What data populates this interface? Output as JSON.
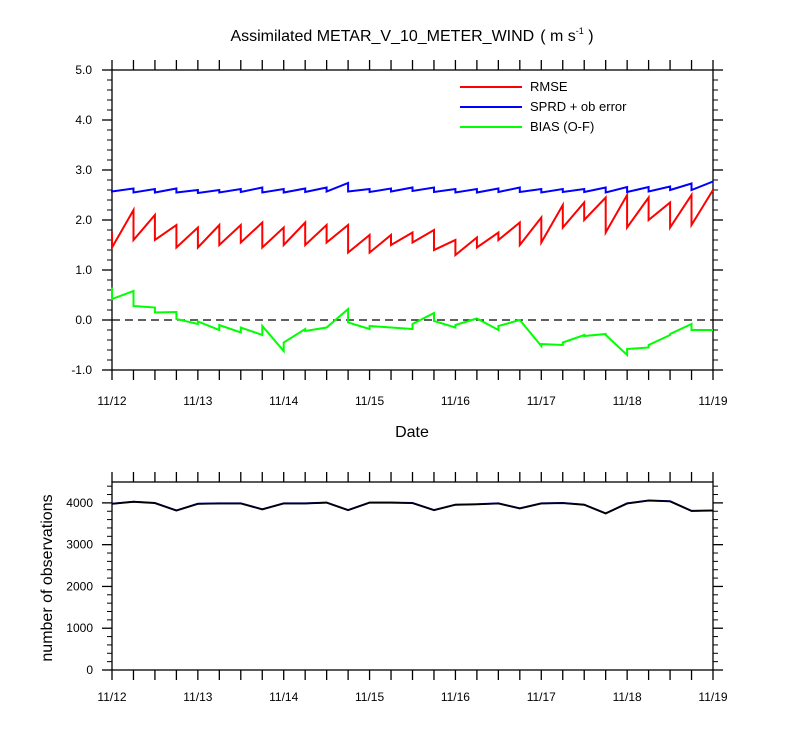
{
  "chart_data": [
    {
      "type": "line",
      "title": "Assimilated METAR_V_10_METER_WIND",
      "title_units_prefix": "( m s",
      "title_units_exp": "-1",
      "title_units_suffix": " )",
      "xlabel": "Date",
      "ylabel": "",
      "ylim": [
        -1.0,
        5.0
      ],
      "y_ticks": [
        "-1.0",
        "0.0",
        "1.0",
        "2.0",
        "3.0",
        "4.0",
        "5.0"
      ],
      "x_tick_labels": [
        "11/12",
        "11/13",
        "11/14",
        "11/15",
        "11/16",
        "11/17",
        "11/18",
        "11/19"
      ],
      "xlim_days": [
        12,
        19
      ],
      "reference_line": 0.0,
      "legend_position": "top-right",
      "series": [
        {
          "name": "RMSE",
          "color": "#ff0000",
          "x": [
            12.0,
            12.0,
            12.25,
            12.25,
            12.5,
            12.5,
            12.75,
            12.75,
            13.0,
            13.0,
            13.25,
            13.25,
            13.5,
            13.5,
            13.75,
            13.75,
            14.0,
            14.0,
            14.25,
            14.25,
            14.5,
            14.5,
            14.75,
            14.75,
            15.0,
            15.0,
            15.25,
            15.25,
            15.5,
            15.5,
            15.75,
            15.75,
            16.0,
            16.0,
            16.25,
            16.25,
            16.5,
            16.5,
            16.75,
            16.75,
            17.0,
            17.0,
            17.25,
            17.25,
            17.5,
            17.5,
            17.75,
            17.75,
            18.0,
            18.0,
            18.25,
            18.25,
            18.5,
            18.5,
            18.75,
            18.75,
            19.0
          ],
          "values": [
            1.75,
            1.45,
            2.2,
            1.6,
            2.1,
            1.6,
            1.9,
            1.45,
            1.85,
            1.45,
            1.9,
            1.5,
            1.9,
            1.55,
            1.95,
            1.45,
            1.85,
            1.5,
            1.95,
            1.5,
            1.9,
            1.55,
            1.9,
            1.35,
            1.7,
            1.35,
            1.7,
            1.5,
            1.75,
            1.55,
            1.8,
            1.4,
            1.6,
            1.3,
            1.65,
            1.45,
            1.75,
            1.6,
            1.95,
            1.5,
            2.05,
            1.55,
            2.3,
            1.85,
            2.35,
            2.0,
            2.45,
            1.75,
            2.5,
            1.85,
            2.45,
            2.0,
            2.35,
            1.85,
            2.5,
            1.9,
            2.6
          ]
        },
        {
          "name": "SPRD + ob error",
          "color": "#0000ff",
          "x": [
            12.0,
            12.0,
            12.25,
            12.25,
            12.5,
            12.5,
            12.75,
            12.75,
            13.0,
            13.0,
            13.25,
            13.25,
            13.5,
            13.5,
            13.75,
            13.75,
            14.0,
            14.0,
            14.25,
            14.25,
            14.5,
            14.5,
            14.75,
            14.75,
            15.0,
            15.0,
            15.25,
            15.25,
            15.5,
            15.5,
            15.75,
            15.75,
            16.0,
            16.0,
            16.25,
            16.25,
            16.5,
            16.5,
            16.75,
            16.75,
            17.0,
            17.0,
            17.25,
            17.25,
            17.5,
            17.5,
            17.75,
            17.75,
            18.0,
            18.0,
            18.25,
            18.25,
            18.5,
            18.5,
            18.75,
            18.75,
            19.0
          ],
          "values": [
            2.6,
            2.57,
            2.63,
            2.55,
            2.62,
            2.55,
            2.63,
            2.55,
            2.6,
            2.54,
            2.6,
            2.55,
            2.62,
            2.56,
            2.65,
            2.55,
            2.62,
            2.55,
            2.63,
            2.56,
            2.65,
            2.57,
            2.74,
            2.57,
            2.62,
            2.56,
            2.63,
            2.57,
            2.65,
            2.58,
            2.65,
            2.56,
            2.62,
            2.55,
            2.62,
            2.55,
            2.63,
            2.56,
            2.65,
            2.56,
            2.62,
            2.55,
            2.62,
            2.56,
            2.62,
            2.56,
            2.65,
            2.55,
            2.66,
            2.56,
            2.66,
            2.57,
            2.67,
            2.6,
            2.73,
            2.6,
            2.77
          ]
        },
        {
          "name": "BIAS (O-F)",
          "color": "#00ff00",
          "x": [
            12.0,
            12.0,
            12.25,
            12.25,
            12.5,
            12.5,
            12.75,
            12.75,
            12.75,
            13.0,
            13.0,
            13.25,
            13.25,
            13.5,
            13.5,
            13.75,
            13.75,
            14.0,
            14.0,
            14.25,
            14.25,
            14.5,
            14.5,
            14.75,
            14.75,
            15.0,
            15.0,
            15.25,
            15.25,
            15.5,
            15.5,
            15.75,
            15.75,
            16.0,
            16.0,
            16.25,
            16.25,
            16.5,
            16.5,
            16.75,
            16.75,
            17.0,
            17.0,
            17.25,
            17.25,
            17.5,
            17.5,
            17.75,
            17.75,
            18.0,
            18.0,
            18.25,
            18.25,
            18.5,
            18.5,
            18.75,
            18.75,
            19.0
          ],
          "values": [
            0.65,
            0.42,
            0.58,
            0.28,
            0.25,
            0.15,
            0.16,
            0.15,
            0.02,
            -0.08,
            -0.03,
            -0.2,
            -0.1,
            -0.25,
            -0.15,
            -0.3,
            -0.12,
            -0.62,
            -0.45,
            -0.18,
            -0.22,
            -0.15,
            -0.15,
            0.22,
            -0.05,
            -0.18,
            -0.12,
            -0.15,
            -0.15,
            -0.18,
            -0.08,
            0.14,
            -0.02,
            -0.15,
            -0.1,
            0.03,
            0.03,
            -0.2,
            -0.12,
            0.0,
            0.0,
            -0.52,
            -0.48,
            -0.5,
            -0.45,
            -0.3,
            -0.32,
            -0.28,
            -0.3,
            -0.7,
            -0.58,
            -0.55,
            -0.5,
            -0.3,
            -0.28,
            -0.08,
            -0.2,
            -0.2
          ]
        }
      ]
    },
    {
      "type": "line",
      "title": "",
      "xlabel": "",
      "ylabel": "number of observations",
      "ylim": [
        0,
        4500
      ],
      "y_ticks": [
        "0",
        "1000",
        "2000",
        "3000",
        "4000"
      ],
      "x_tick_labels": [
        "11/12",
        "11/13",
        "11/14",
        "11/15",
        "11/16",
        "11/17",
        "11/18",
        "11/19"
      ],
      "xlim_days": [
        12,
        19
      ],
      "series": [
        {
          "color": "#0000cc",
          "x": [
            12.0,
            12.25,
            12.5,
            12.75,
            13.0,
            13.25,
            13.5,
            13.75,
            14.0,
            14.25,
            14.5,
            14.75,
            15.0,
            15.25,
            15.5,
            15.75,
            16.0,
            16.25,
            16.5,
            16.75,
            17.0,
            17.25,
            17.5,
            17.75,
            18.0,
            18.25,
            18.5,
            18.75,
            19.0
          ],
          "values": [
            3980,
            4030,
            4000,
            3820,
            3980,
            3990,
            3990,
            3850,
            3990,
            3990,
            4010,
            3830,
            4010,
            4010,
            4000,
            3830,
            3960,
            3970,
            3990,
            3870,
            3990,
            4000,
            3960,
            3750,
            3990,
            4060,
            4040,
            3810,
            3820
          ]
        },
        {
          "color": "#000000",
          "x": [
            12.0,
            12.25,
            12.5,
            12.75,
            13.0,
            13.25,
            13.5,
            13.75,
            14.0,
            14.25,
            14.5,
            14.75,
            15.0,
            15.25,
            15.5,
            15.75,
            16.0,
            16.25,
            16.5,
            16.75,
            17.0,
            17.25,
            17.5,
            17.75,
            18.0,
            18.25,
            18.5,
            18.75,
            19.0
          ],
          "values": [
            3975,
            4025,
            3995,
            3815,
            3975,
            3985,
            3985,
            3845,
            3985,
            3985,
            4005,
            3825,
            4005,
            4005,
            3995,
            3825,
            3955,
            3965,
            3985,
            3865,
            3985,
            3995,
            3955,
            3745,
            3985,
            4055,
            4035,
            3805,
            3815
          ]
        }
      ]
    }
  ]
}
